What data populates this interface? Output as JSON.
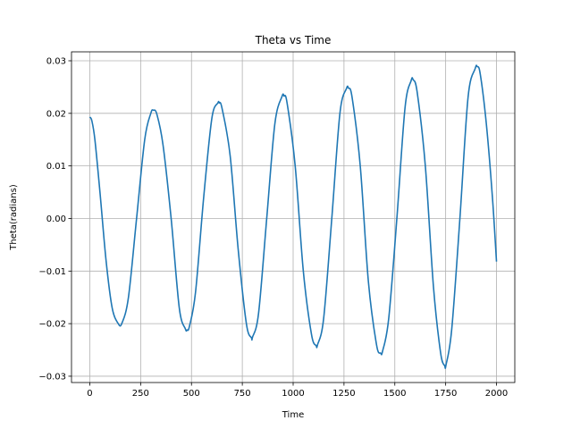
{
  "chart_data": {
    "type": "line",
    "title": "Theta vs Time",
    "xlabel": "Time",
    "ylabel": "Theta(radians)",
    "xlim": [
      -90,
      2090
    ],
    "ylim": [
      -0.0312,
      0.0317
    ],
    "xticks": [
      0,
      250,
      500,
      750,
      1000,
      1250,
      1500,
      1750,
      2000
    ],
    "yticks": [
      -0.03,
      -0.02,
      -0.01,
      0.0,
      0.01,
      0.02,
      0.03
    ],
    "xtick_labels": [
      "0",
      "250",
      "500",
      "750",
      "1000",
      "1250",
      "1500",
      "1750",
      "2000"
    ],
    "ytick_labels": [
      "−0.03",
      "−0.02",
      "−0.01",
      "0.00",
      "0.01",
      "0.02",
      "0.03"
    ],
    "grid": true,
    "series": [
      {
        "color": "#1f77b4",
        "points": [
          [
            0,
            0.0193
          ],
          [
            10,
            0.0186
          ],
          [
            25,
            0.015
          ],
          [
            50,
            0.005
          ],
          [
            80,
            -0.008
          ],
          [
            110,
            -0.017
          ],
          [
            140,
            -0.02
          ],
          [
            158,
            -0.0199
          ],
          [
            190,
            -0.015
          ],
          [
            230,
            0.0
          ],
          [
            270,
            0.015
          ],
          [
            300,
            0.02
          ],
          [
            313,
            0.0206
          ],
          [
            330,
            0.0198
          ],
          [
            360,
            0.014
          ],
          [
            400,
            0.0
          ],
          [
            440,
            -0.017
          ],
          [
            470,
            -0.021
          ],
          [
            478,
            -0.0212
          ],
          [
            490,
            -0.0205
          ],
          [
            520,
            -0.014
          ],
          [
            560,
            0.004
          ],
          [
            600,
            0.019
          ],
          [
            630,
            0.022
          ],
          [
            636,
            0.022
          ],
          [
            650,
            0.021
          ],
          [
            690,
            0.012
          ],
          [
            730,
            -0.006
          ],
          [
            770,
            -0.02
          ],
          [
            795,
            -0.0227
          ],
          [
            800,
            -0.0226
          ],
          [
            830,
            -0.018
          ],
          [
            870,
            0.0
          ],
          [
            910,
            0.018
          ],
          [
            945,
            0.0232
          ],
          [
            955,
            0.0233
          ],
          [
            970,
            0.022
          ],
          [
            1010,
            0.01
          ],
          [
            1050,
            -0.01
          ],
          [
            1090,
            -0.022
          ],
          [
            1113,
            -0.0242
          ],
          [
            1120,
            -0.024
          ],
          [
            1150,
            -0.019
          ],
          [
            1190,
            0.0
          ],
          [
            1230,
            0.02
          ],
          [
            1262,
            0.0247
          ],
          [
            1272,
            0.0248
          ],
          [
            1290,
            0.023
          ],
          [
            1330,
            0.01
          ],
          [
            1370,
            -0.012
          ],
          [
            1410,
            -0.024
          ],
          [
            1430,
            -0.0256
          ],
          [
            1440,
            -0.0252
          ],
          [
            1470,
            -0.019
          ],
          [
            1510,
            0.0
          ],
          [
            1550,
            0.021
          ],
          [
            1580,
            0.0262
          ],
          [
            1590,
            0.0264
          ],
          [
            1610,
            0.024
          ],
          [
            1650,
            0.01
          ],
          [
            1690,
            -0.013
          ],
          [
            1725,
            -0.0255
          ],
          [
            1745,
            -0.028
          ],
          [
            1752,
            -0.0278
          ],
          [
            1780,
            -0.021
          ],
          [
            1820,
            0.0
          ],
          [
            1860,
            0.023
          ],
          [
            1895,
            0.0285
          ],
          [
            1905,
            0.0289
          ],
          [
            1920,
            0.0275
          ],
          [
            1950,
            0.018
          ],
          [
            1980,
            0.004
          ],
          [
            2000,
            -0.0082
          ]
        ]
      }
    ]
  }
}
